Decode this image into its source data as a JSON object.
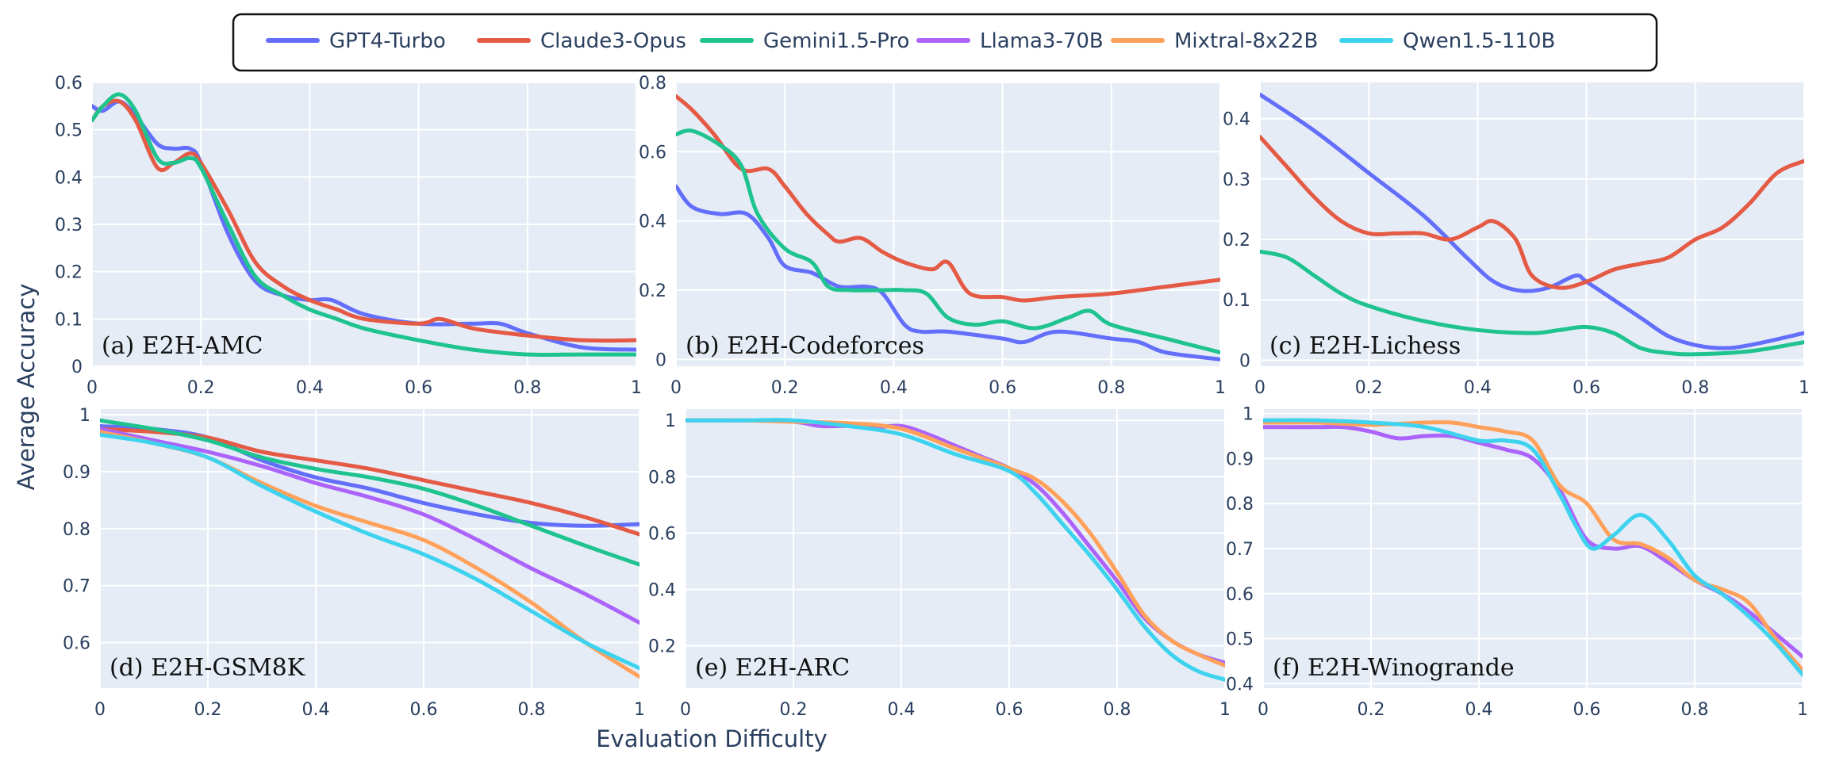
{
  "colors": {
    "GPT4-Turbo": "#636efa",
    "Claude3-Opus": "#e45a45",
    "Gemini1.5-Pro": "#1fc38f",
    "Llama3-70B": "#ab63fa",
    "Mixtral-8x22B": "#ffa15a",
    "Qwen1.5-110B": "#3dd2ee"
  },
  "legend": {
    "placement": "top-center",
    "items": [
      "GPT4-Turbo",
      "Claude3-Opus",
      "Gemini1.5-Pro",
      "Llama3-70B",
      "Mixtral-8x22B",
      "Qwen1.5-110B"
    ]
  },
  "xlabel": "Evaluation Difficulty",
  "ylabel": "Average Accuracy",
  "chart_data": [
    {
      "type": "line",
      "title": "(a) E2H-AMC",
      "xlim": [
        0,
        1
      ],
      "ylim": [
        0,
        0.6
      ],
      "xticks": [
        0,
        0.2,
        0.4,
        0.6,
        0.8,
        1
      ],
      "xtick_labels": [
        "0",
        "0.2",
        "0.4",
        "0.6",
        "0.8",
        "1"
      ],
      "yticks": [
        0,
        0.1,
        0.2,
        0.3,
        0.4,
        0.5,
        0.6
      ],
      "ytick_labels": [
        "0",
        "0.1",
        "0.2",
        "0.3",
        "0.4",
        "0.5",
        "0.6"
      ],
      "grid": true,
      "series": [
        {
          "name": "GPT4-Turbo",
          "x": [
            0,
            0.02,
            0.05,
            0.08,
            0.12,
            0.15,
            0.18,
            0.2,
            0.25,
            0.3,
            0.35,
            0.4,
            0.44,
            0.5,
            0.6,
            0.7,
            0.75,
            0.8,
            0.9,
            1
          ],
          "y": [
            0.55,
            0.54,
            0.56,
            0.53,
            0.47,
            0.46,
            0.46,
            0.43,
            0.28,
            0.18,
            0.15,
            0.14,
            0.14,
            0.11,
            0.09,
            0.09,
            0.09,
            0.07,
            0.04,
            0.035
          ]
        },
        {
          "name": "Claude3-Opus",
          "x": [
            0,
            0.02,
            0.05,
            0.08,
            0.12,
            0.15,
            0.18,
            0.2,
            0.25,
            0.3,
            0.35,
            0.4,
            0.45,
            0.5,
            0.6,
            0.64,
            0.7,
            0.8,
            0.9,
            1
          ],
          "y": [
            0.52,
            0.55,
            0.56,
            0.52,
            0.42,
            0.43,
            0.45,
            0.43,
            0.33,
            0.22,
            0.17,
            0.14,
            0.12,
            0.1,
            0.09,
            0.1,
            0.08,
            0.065,
            0.055,
            0.055
          ]
        },
        {
          "name": "Gemini1.5-Pro",
          "x": [
            0,
            0.02,
            0.05,
            0.08,
            0.12,
            0.15,
            0.18,
            0.2,
            0.25,
            0.3,
            0.35,
            0.4,
            0.45,
            0.5,
            0.6,
            0.7,
            0.8,
            0.9,
            1
          ],
          "y": [
            0.52,
            0.55,
            0.575,
            0.54,
            0.44,
            0.43,
            0.44,
            0.42,
            0.3,
            0.19,
            0.15,
            0.12,
            0.1,
            0.08,
            0.055,
            0.035,
            0.025,
            0.025,
            0.025
          ]
        }
      ]
    },
    {
      "type": "line",
      "title": "(b) E2H-Codeforces",
      "xlim": [
        0,
        1
      ],
      "ylim": [
        -0.02,
        0.8
      ],
      "xticks": [
        0,
        0.2,
        0.4,
        0.6,
        0.8,
        1
      ],
      "xtick_labels": [
        "0",
        "0.2",
        "0.4",
        "0.6",
        "0.8",
        "1"
      ],
      "yticks": [
        0,
        0.2,
        0.4,
        0.6,
        0.8
      ],
      "ytick_labels": [
        "0",
        "0.2",
        "0.4",
        "0.6",
        "0.8"
      ],
      "grid": true,
      "series": [
        {
          "name": "GPT4-Turbo",
          "x": [
            0,
            0.03,
            0.08,
            0.13,
            0.17,
            0.2,
            0.25,
            0.3,
            0.35,
            0.38,
            0.42,
            0.45,
            0.5,
            0.6,
            0.64,
            0.7,
            0.8,
            0.85,
            0.9,
            1
          ],
          "y": [
            0.5,
            0.44,
            0.42,
            0.42,
            0.35,
            0.27,
            0.25,
            0.21,
            0.21,
            0.19,
            0.1,
            0.08,
            0.08,
            0.06,
            0.05,
            0.08,
            0.06,
            0.05,
            0.02,
            0
          ]
        },
        {
          "name": "Claude3-Opus",
          "x": [
            0,
            0.03,
            0.07,
            0.12,
            0.17,
            0.2,
            0.24,
            0.28,
            0.3,
            0.34,
            0.38,
            0.42,
            0.47,
            0.5,
            0.54,
            0.6,
            0.64,
            0.7,
            0.8,
            0.9,
            1
          ],
          "y": [
            0.76,
            0.72,
            0.65,
            0.55,
            0.55,
            0.5,
            0.42,
            0.36,
            0.34,
            0.35,
            0.31,
            0.28,
            0.26,
            0.28,
            0.19,
            0.18,
            0.17,
            0.18,
            0.19,
            0.21,
            0.23
          ]
        },
        {
          "name": "Gemini1.5-Pro",
          "x": [
            0,
            0.03,
            0.08,
            0.12,
            0.15,
            0.2,
            0.25,
            0.28,
            0.32,
            0.38,
            0.42,
            0.46,
            0.5,
            0.55,
            0.6,
            0.66,
            0.72,
            0.76,
            0.8,
            0.9,
            1
          ],
          "y": [
            0.65,
            0.66,
            0.62,
            0.56,
            0.42,
            0.32,
            0.28,
            0.21,
            0.2,
            0.2,
            0.2,
            0.19,
            0.12,
            0.1,
            0.11,
            0.09,
            0.12,
            0.14,
            0.1,
            0.06,
            0.02
          ]
        }
      ]
    },
    {
      "type": "line",
      "title": "(c) E2H-Lichess",
      "xlim": [
        0,
        1
      ],
      "ylim": [
        -0.01,
        0.46
      ],
      "xticks": [
        0,
        0.2,
        0.4,
        0.6,
        0.8,
        1
      ],
      "xtick_labels": [
        "0",
        "0.2",
        "0.4",
        "0.6",
        "0.8",
        "1"
      ],
      "yticks": [
        0,
        0.1,
        0.2,
        0.3,
        0.4
      ],
      "ytick_labels": [
        "0",
        "0.1",
        "0.2",
        "0.3",
        "0.4"
      ],
      "grid": true,
      "series": [
        {
          "name": "GPT4-Turbo",
          "x": [
            0,
            0.1,
            0.2,
            0.3,
            0.38,
            0.43,
            0.48,
            0.53,
            0.58,
            0.6,
            0.65,
            0.7,
            0.75,
            0.8,
            0.85,
            0.9,
            1
          ],
          "y": [
            0.44,
            0.38,
            0.31,
            0.24,
            0.17,
            0.13,
            0.115,
            0.12,
            0.14,
            0.13,
            0.1,
            0.07,
            0.04,
            0.025,
            0.02,
            0.025,
            0.045
          ]
        },
        {
          "name": "Claude3-Opus",
          "x": [
            0,
            0.05,
            0.1,
            0.15,
            0.2,
            0.25,
            0.3,
            0.35,
            0.4,
            0.43,
            0.47,
            0.5,
            0.55,
            0.6,
            0.65,
            0.7,
            0.75,
            0.8,
            0.85,
            0.9,
            0.95,
            1
          ],
          "y": [
            0.37,
            0.32,
            0.27,
            0.23,
            0.21,
            0.21,
            0.21,
            0.2,
            0.22,
            0.23,
            0.2,
            0.14,
            0.12,
            0.13,
            0.15,
            0.16,
            0.17,
            0.2,
            0.22,
            0.26,
            0.31,
            0.33
          ]
        },
        {
          "name": "Gemini1.5-Pro",
          "x": [
            0,
            0.05,
            0.1,
            0.15,
            0.2,
            0.3,
            0.4,
            0.5,
            0.55,
            0.6,
            0.65,
            0.7,
            0.75,
            0.8,
            0.9,
            1
          ],
          "y": [
            0.18,
            0.17,
            0.14,
            0.11,
            0.09,
            0.065,
            0.05,
            0.045,
            0.05,
            0.055,
            0.045,
            0.02,
            0.012,
            0.01,
            0.015,
            0.03
          ]
        }
      ]
    },
    {
      "type": "line",
      "title": "(d) E2H-GSM8K",
      "xlim": [
        0,
        1
      ],
      "ylim": [
        0.52,
        1.01
      ],
      "xticks": [
        0,
        0.2,
        0.4,
        0.6,
        0.8,
        1
      ],
      "xtick_labels": [
        "0",
        "0.2",
        "0.4",
        "0.6",
        "0.8",
        "1"
      ],
      "yticks": [
        0.6,
        0.7,
        0.8,
        0.9,
        1
      ],
      "ytick_labels": [
        "0.6",
        "0.7",
        "0.8",
        "0.9",
        "1"
      ],
      "grid": true,
      "series": [
        {
          "name": "GPT4-Turbo",
          "x": [
            0,
            0.1,
            0.2,
            0.3,
            0.4,
            0.5,
            0.6,
            0.7,
            0.8,
            0.9,
            1
          ],
          "y": [
            0.98,
            0.975,
            0.96,
            0.92,
            0.89,
            0.87,
            0.845,
            0.825,
            0.81,
            0.805,
            0.808
          ]
        },
        {
          "name": "Claude3-Opus",
          "x": [
            0,
            0.1,
            0.2,
            0.3,
            0.4,
            0.5,
            0.6,
            0.7,
            0.8,
            0.9,
            1
          ],
          "y": [
            0.975,
            0.97,
            0.96,
            0.935,
            0.92,
            0.905,
            0.885,
            0.865,
            0.845,
            0.82,
            0.79
          ]
        },
        {
          "name": "Gemini1.5-Pro",
          "x": [
            0,
            0.1,
            0.2,
            0.3,
            0.4,
            0.5,
            0.6,
            0.7,
            0.8,
            0.9,
            1
          ],
          "y": [
            0.99,
            0.975,
            0.955,
            0.925,
            0.905,
            0.89,
            0.87,
            0.84,
            0.805,
            0.77,
            0.737
          ]
        },
        {
          "name": "Llama3-70B",
          "x": [
            0,
            0.1,
            0.2,
            0.3,
            0.4,
            0.5,
            0.6,
            0.7,
            0.8,
            0.9,
            1
          ],
          "y": [
            0.975,
            0.955,
            0.935,
            0.91,
            0.88,
            0.855,
            0.825,
            0.78,
            0.73,
            0.685,
            0.635
          ]
        },
        {
          "name": "Mixtral-8x22B",
          "x": [
            0,
            0.1,
            0.2,
            0.3,
            0.4,
            0.5,
            0.6,
            0.7,
            0.8,
            0.9,
            1
          ],
          "y": [
            0.97,
            0.95,
            0.925,
            0.88,
            0.84,
            0.81,
            0.78,
            0.73,
            0.67,
            0.6,
            0.54
          ]
        },
        {
          "name": "Qwen1.5-110B",
          "x": [
            0,
            0.1,
            0.2,
            0.3,
            0.4,
            0.5,
            0.6,
            0.7,
            0.8,
            0.9,
            1
          ],
          "y": [
            0.965,
            0.95,
            0.925,
            0.875,
            0.83,
            0.79,
            0.755,
            0.71,
            0.655,
            0.6,
            0.555
          ]
        }
      ]
    },
    {
      "type": "line",
      "title": "(e) E2H-ARC",
      "xlim": [
        0,
        1
      ],
      "ylim": [
        0.05,
        1.04
      ],
      "xticks": [
        0,
        0.2,
        0.4,
        0.6,
        0.8,
        1
      ],
      "xtick_labels": [
        "0",
        "0.2",
        "0.4",
        "0.6",
        "0.8",
        "1"
      ],
      "yticks": [
        0.2,
        0.4,
        0.6,
        0.8,
        1
      ],
      "ytick_labels": [
        "0.2",
        "0.4",
        "0.6",
        "0.8",
        "1"
      ],
      "grid": true,
      "series": [
        {
          "name": "Llama3-70B",
          "x": [
            0,
            0.1,
            0.2,
            0.25,
            0.3,
            0.35,
            0.4,
            0.45,
            0.5,
            0.55,
            0.6,
            0.65,
            0.7,
            0.75,
            0.8,
            0.85,
            0.9,
            0.95,
            1
          ],
          "y": [
            1,
            1,
            0.995,
            0.98,
            0.98,
            0.975,
            0.98,
            0.95,
            0.91,
            0.87,
            0.83,
            0.77,
            0.67,
            0.55,
            0.43,
            0.3,
            0.22,
            0.17,
            0.14
          ]
        },
        {
          "name": "Mixtral-8x22B",
          "x": [
            0,
            0.1,
            0.2,
            0.3,
            0.4,
            0.5,
            0.6,
            0.65,
            0.7,
            0.75,
            0.8,
            0.85,
            0.9,
            0.95,
            1
          ],
          "y": [
            1,
            1,
            0.995,
            0.99,
            0.97,
            0.9,
            0.83,
            0.79,
            0.71,
            0.6,
            0.46,
            0.31,
            0.22,
            0.17,
            0.13
          ]
        },
        {
          "name": "Qwen1.5-110B",
          "x": [
            0,
            0.1,
            0.2,
            0.3,
            0.4,
            0.5,
            0.6,
            0.65,
            0.7,
            0.75,
            0.8,
            0.85,
            0.9,
            0.95,
            1
          ],
          "y": [
            1,
            1,
            1,
            0.98,
            0.95,
            0.88,
            0.82,
            0.74,
            0.63,
            0.52,
            0.4,
            0.27,
            0.17,
            0.11,
            0.08
          ]
        }
      ]
    },
    {
      "type": "line",
      "title": "(f) E2H-Winogrande",
      "xlim": [
        0,
        1
      ],
      "ylim": [
        0.39,
        1.01
      ],
      "xticks": [
        0,
        0.2,
        0.4,
        0.6,
        0.8,
        1
      ],
      "xtick_labels": [
        "0",
        "0.2",
        "0.4",
        "0.6",
        "0.8",
        "1"
      ],
      "yticks": [
        0.4,
        0.5,
        0.6,
        0.7,
        0.8,
        0.9,
        1
      ],
      "ytick_labels": [
        "0.4",
        "0.5",
        "0.6",
        "0.7",
        "0.8",
        "0.9",
        "1"
      ],
      "grid": true,
      "series": [
        {
          "name": "Llama3-70B",
          "x": [
            0,
            0.1,
            0.15,
            0.2,
            0.25,
            0.3,
            0.35,
            0.4,
            0.45,
            0.5,
            0.55,
            0.6,
            0.65,
            0.7,
            0.75,
            0.8,
            0.85,
            0.9,
            1
          ],
          "y": [
            0.97,
            0.97,
            0.97,
            0.96,
            0.945,
            0.95,
            0.95,
            0.935,
            0.92,
            0.9,
            0.83,
            0.72,
            0.7,
            0.705,
            0.67,
            0.63,
            0.6,
            0.56,
            0.46
          ]
        },
        {
          "name": "Mixtral-8x22B",
          "x": [
            0,
            0.1,
            0.2,
            0.3,
            0.35,
            0.4,
            0.45,
            0.5,
            0.55,
            0.6,
            0.65,
            0.7,
            0.75,
            0.8,
            0.85,
            0.9,
            0.95,
            1
          ],
          "y": [
            0.98,
            0.98,
            0.975,
            0.98,
            0.98,
            0.97,
            0.96,
            0.94,
            0.84,
            0.8,
            0.72,
            0.71,
            0.68,
            0.63,
            0.61,
            0.58,
            0.5,
            0.43
          ]
        },
        {
          "name": "Qwen1.5-110B",
          "x": [
            0,
            0.1,
            0.2,
            0.3,
            0.4,
            0.45,
            0.5,
            0.55,
            0.58,
            0.61,
            0.65,
            0.7,
            0.75,
            0.8,
            0.85,
            0.9,
            0.95,
            1
          ],
          "y": [
            0.985,
            0.985,
            0.98,
            0.97,
            0.94,
            0.94,
            0.92,
            0.82,
            0.75,
            0.7,
            0.73,
            0.775,
            0.72,
            0.64,
            0.6,
            0.55,
            0.49,
            0.42
          ]
        }
      ]
    }
  ]
}
